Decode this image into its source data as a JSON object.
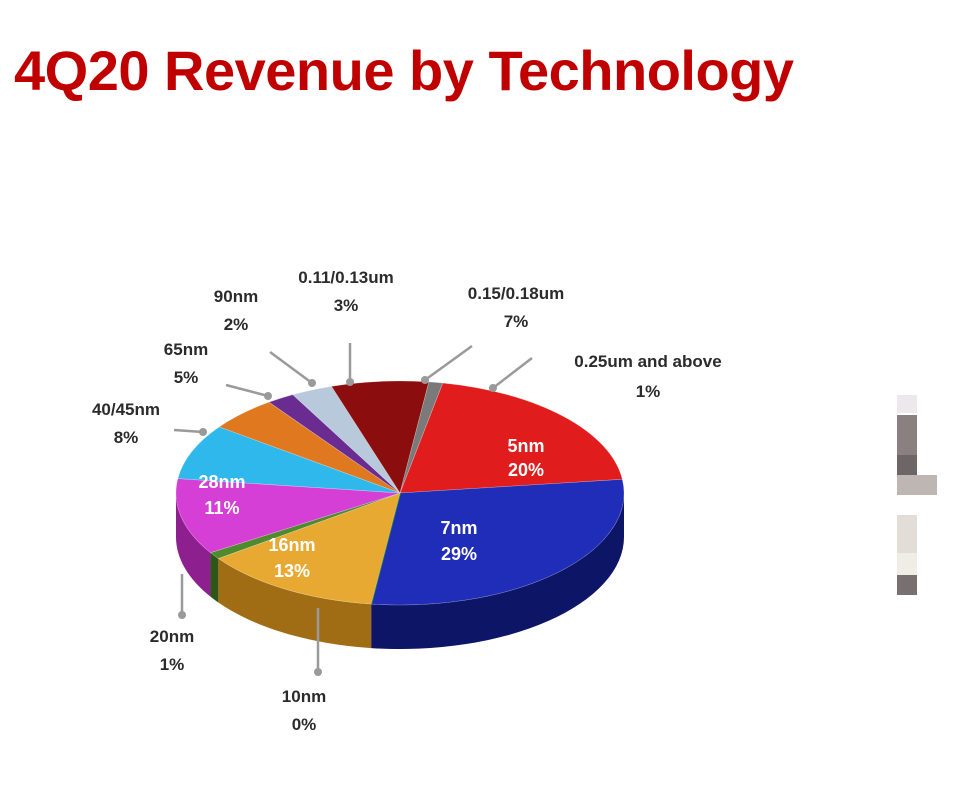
{
  "title": "4Q20 Revenue by Technology",
  "chart_data": {
    "type": "pie",
    "title": "4Q20 Revenue by Technology",
    "slices": [
      {
        "name": "5nm",
        "value": 20,
        "display": "20%",
        "color": "#e01c1c",
        "side": "#8f0c0c",
        "label_position": "inside"
      },
      {
        "name": "7nm",
        "value": 29,
        "display": "29%",
        "color": "#1f2db8",
        "side": "#0d1566",
        "label_position": "inside"
      },
      {
        "name": "10nm",
        "value": 0,
        "display": "0%",
        "color": "#2e7d32",
        "side": "#1b4d1e",
        "label_position": "outside"
      },
      {
        "name": "16nm",
        "value": 13,
        "display": "13%",
        "color": "#e8a932",
        "side": "#a06d14",
        "label_position": "inside"
      },
      {
        "name": "20nm",
        "value": 1,
        "display": "1%",
        "color": "#4f8a2e",
        "side": "#2f5619",
        "label_position": "outside"
      },
      {
        "name": "28nm",
        "value": 11,
        "display": "11%",
        "color": "#d63fd6",
        "side": "#8e1f8e",
        "label_position": "inside"
      },
      {
        "name": "40/45nm",
        "value": 8,
        "display": "8%",
        "color": "#2fb8ec",
        "side": "#17799e",
        "label_position": "outside"
      },
      {
        "name": "65nm",
        "value": 5,
        "display": "5%",
        "color": "#e07820",
        "side": "#94470c",
        "label_position": "outside"
      },
      {
        "name": "90nm",
        "value": 2,
        "display": "2%",
        "color": "#6a2c91",
        "side": "#3f155a",
        "label_position": "outside"
      },
      {
        "name": "0.11/0.13um",
        "value": 3,
        "display": "3%",
        "color": "#b8c9dc",
        "side": "#7c8ea2",
        "label_position": "outside"
      },
      {
        "name": "0.15/0.18um",
        "value": 7,
        "display": "7%",
        "color": "#8b0d0d",
        "side": "#520606",
        "label_position": "outside"
      },
      {
        "name": "0.25um and above",
        "value": 1,
        "display": "1%",
        "color": "#7a7a7a",
        "side": "#474747",
        "label_position": "outside"
      }
    ]
  },
  "thumbnail_colors": [
    "#ece8ec",
    "#8a8080",
    "#6e6666",
    "#bdb6b2",
    "#e2ddd6",
    "#f0ece6",
    "#787070"
  ]
}
